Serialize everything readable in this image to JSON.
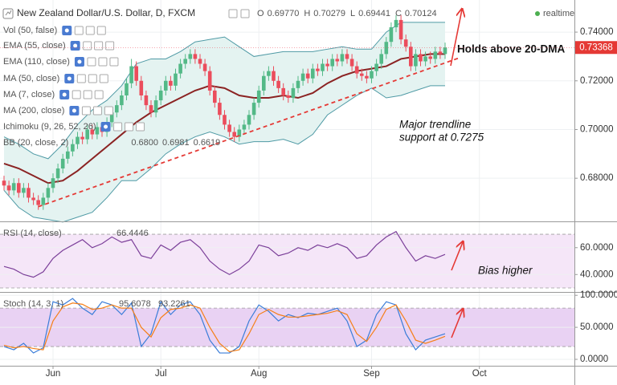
{
  "chart_data": [
    {
      "type": "candlestick",
      "title": "New Zealand Dollar/U.S. Dollar, D, FXCM",
      "ohlc_legend": [
        {
          "label": "O",
          "value": "0.69770"
        },
        {
          "label": "H",
          "value": "0.70279"
        },
        {
          "label": "L",
          "value": "0.69441"
        },
        {
          "label": "C",
          "value": "0.70124"
        }
      ],
      "status": "realtime",
      "indicators": [
        "Vol (50, false)",
        "EMA (55, close)",
        "EMA (110, close)",
        "MA (50, close)",
        "MA (7, close)",
        "MA (200, close)",
        "Ichimoku (9, 26, 52, 26)"
      ],
      "bb_title": "BB (20, close, 2)",
      "bb_values": [
        "0.6800",
        "0.6981",
        "0.6619"
      ],
      "up_color": "#53b987",
      "down_color": "#eb4d5c",
      "open": [
        0.679,
        0.677,
        0.675,
        0.678,
        0.674,
        0.676,
        0.672,
        0.671,
        0.669,
        0.672,
        0.676,
        0.68,
        0.684,
        0.688,
        0.691,
        0.694,
        0.697,
        0.696,
        0.7,
        0.698,
        0.701,
        0.699,
        0.703,
        0.707,
        0.71,
        0.714,
        0.719,
        0.726,
        0.72,
        0.714,
        0.71,
        0.707,
        0.712,
        0.716,
        0.72,
        0.718,
        0.723,
        0.727,
        0.729,
        0.731,
        0.729,
        0.727,
        0.724,
        0.716,
        0.711,
        0.706,
        0.702,
        0.699,
        0.697,
        0.7,
        0.702,
        0.706,
        0.711,
        0.716,
        0.722,
        0.724,
        0.72,
        0.717,
        0.714,
        0.713,
        0.717,
        0.72,
        0.723,
        0.721,
        0.725,
        0.724,
        0.727,
        0.726,
        0.729,
        0.728,
        0.731,
        0.729,
        0.726,
        0.723,
        0.722,
        0.721,
        0.724,
        0.727,
        0.731,
        0.736,
        0.742,
        0.745,
        0.737,
        0.734,
        0.726,
        0.731,
        0.728,
        0.73,
        0.729,
        0.732,
        0.731
      ],
      "high": [
        0.681,
        0.679,
        0.68,
        0.68,
        0.678,
        0.678,
        0.674,
        0.673,
        0.674,
        0.678,
        0.682,
        0.686,
        0.69,
        0.693,
        0.696,
        0.699,
        0.699,
        0.702,
        0.702,
        0.703,
        0.703,
        0.705,
        0.709,
        0.712,
        0.716,
        0.721,
        0.729,
        0.728,
        0.722,
        0.716,
        0.712,
        0.714,
        0.718,
        0.722,
        0.722,
        0.725,
        0.729,
        0.731,
        0.733,
        0.733,
        0.731,
        0.729,
        0.726,
        0.718,
        0.713,
        0.708,
        0.704,
        0.701,
        0.702,
        0.704,
        0.708,
        0.713,
        0.718,
        0.724,
        0.726,
        0.726,
        0.722,
        0.719,
        0.716,
        0.719,
        0.722,
        0.725,
        0.725,
        0.727,
        0.727,
        0.729,
        0.729,
        0.731,
        0.731,
        0.733,
        0.733,
        0.731,
        0.728,
        0.725,
        0.724,
        0.726,
        0.729,
        0.733,
        0.738,
        0.744,
        0.747,
        0.747,
        0.739,
        0.736,
        0.733,
        0.733,
        0.732,
        0.732,
        0.734,
        0.734,
        0.7357
      ],
      "low": [
        0.675,
        0.673,
        0.673,
        0.672,
        0.672,
        0.67,
        0.669,
        0.667,
        0.667,
        0.67,
        0.674,
        0.678,
        0.682,
        0.686,
        0.689,
        0.692,
        0.694,
        0.694,
        0.696,
        0.696,
        0.697,
        0.697,
        0.701,
        0.705,
        0.708,
        0.712,
        0.717,
        0.718,
        0.712,
        0.708,
        0.705,
        0.705,
        0.71,
        0.714,
        0.716,
        0.716,
        0.721,
        0.725,
        0.727,
        0.727,
        0.725,
        0.722,
        0.714,
        0.709,
        0.704,
        0.7,
        0.697,
        0.695,
        0.695,
        0.698,
        0.7,
        0.704,
        0.709,
        0.714,
        0.72,
        0.718,
        0.715,
        0.712,
        0.711,
        0.711,
        0.715,
        0.718,
        0.719,
        0.719,
        0.722,
        0.722,
        0.724,
        0.724,
        0.726,
        0.726,
        0.727,
        0.724,
        0.721,
        0.72,
        0.719,
        0.719,
        0.722,
        0.725,
        0.729,
        0.734,
        0.74,
        0.735,
        0.732,
        0.724,
        0.724,
        0.726,
        0.726,
        0.727,
        0.727,
        0.729,
        0.729
      ],
      "close": [
        0.677,
        0.675,
        0.678,
        0.674,
        0.676,
        0.672,
        0.671,
        0.669,
        0.672,
        0.676,
        0.68,
        0.684,
        0.688,
        0.691,
        0.694,
        0.697,
        0.696,
        0.7,
        0.698,
        0.701,
        0.699,
        0.703,
        0.707,
        0.71,
        0.714,
        0.719,
        0.726,
        0.72,
        0.714,
        0.71,
        0.707,
        0.712,
        0.716,
        0.72,
        0.718,
        0.723,
        0.727,
        0.729,
        0.731,
        0.729,
        0.727,
        0.724,
        0.716,
        0.711,
        0.706,
        0.702,
        0.699,
        0.697,
        0.7,
        0.702,
        0.706,
        0.711,
        0.716,
        0.722,
        0.724,
        0.72,
        0.717,
        0.714,
        0.713,
        0.717,
        0.72,
        0.723,
        0.721,
        0.725,
        0.724,
        0.727,
        0.726,
        0.729,
        0.728,
        0.731,
        0.729,
        0.726,
        0.723,
        0.722,
        0.721,
        0.724,
        0.727,
        0.731,
        0.736,
        0.742,
        0.745,
        0.737,
        0.734,
        0.726,
        0.731,
        0.728,
        0.73,
        0.729,
        0.732,
        0.731,
        0.73368
      ],
      "bands": {
        "x": [
          0,
          3,
          6,
          9,
          12,
          15,
          18,
          21,
          24,
          27,
          30,
          33,
          36,
          39,
          42,
          45,
          48,
          51,
          54,
          57,
          60,
          63,
          66,
          69,
          72,
          75,
          78,
          81,
          84,
          87,
          90
        ],
        "upper": [
          0.697,
          0.694,
          0.69,
          0.688,
          0.694,
          0.702,
          0.708,
          0.712,
          0.718,
          0.727,
          0.729,
          0.729,
          0.732,
          0.736,
          0.737,
          0.738,
          0.734,
          0.73,
          0.731,
          0.732,
          0.732,
          0.732,
          0.733,
          0.734,
          0.733,
          0.733,
          0.74,
          0.744,
          0.744,
          0.744,
          0.744
        ],
        "middle": [
          0.686,
          0.684,
          0.681,
          0.678,
          0.679,
          0.683,
          0.688,
          0.693,
          0.698,
          0.703,
          0.707,
          0.71,
          0.713,
          0.716,
          0.718,
          0.717,
          0.714,
          0.713,
          0.713,
          0.714,
          0.713,
          0.715,
          0.719,
          0.722,
          0.724,
          0.725,
          0.726,
          0.729,
          0.73,
          0.731,
          0.731
        ],
        "lower": [
          0.675,
          0.668,
          0.664,
          0.663,
          0.662,
          0.664,
          0.666,
          0.672,
          0.679,
          0.679,
          0.684,
          0.69,
          0.694,
          0.697,
          0.699,
          0.697,
          0.694,
          0.695,
          0.695,
          0.696,
          0.694,
          0.698,
          0.706,
          0.71,
          0.714,
          0.717,
          0.713,
          0.714,
          0.716,
          0.718,
          0.718
        ],
        "color": "#4f9aa5",
        "middle_color": "#8b2323",
        "fill": "#e4f3f1"
      },
      "trendline": {
        "x": [
          7,
          93
        ],
        "values": [
          0.6683,
          0.7295
        ],
        "color": "#e53935"
      },
      "last_price": {
        "value": 0.73368,
        "label": "0.73368"
      },
      "ylim": [
        0.6626,
        0.7532
      ],
      "yticks": [
        {
          "value": 0.68,
          "label": "0.68000"
        },
        {
          "value": 0.7,
          "label": "0.70000"
        },
        {
          "value": 0.72,
          "label": "0.72000"
        },
        {
          "value": 0.74,
          "label": "0.74000"
        }
      ],
      "xticks": [
        {
          "value": 10,
          "label": "Jun"
        },
        {
          "value": 32,
          "label": "Jul"
        },
        {
          "value": 52,
          "label": "Aug"
        },
        {
          "value": 75,
          "label": "Sep"
        },
        {
          "value": 97,
          "label": "Oct"
        }
      ],
      "grid": true,
      "annotations": [
        "Holds above 20-DMA",
        "Major trendline",
        "support at 0.7275"
      ]
    },
    {
      "type": "line",
      "title": "RSI (14, close)",
      "x": [
        0,
        2,
        4,
        6,
        8,
        10,
        12,
        14,
        16,
        18,
        20,
        22,
        24,
        26,
        28,
        30,
        32,
        34,
        36,
        38,
        40,
        42,
        44,
        46,
        48,
        50,
        52,
        54,
        56,
        58,
        60,
        62,
        64,
        66,
        68,
        70,
        72,
        74,
        76,
        78,
        80,
        82,
        84,
        86,
        88,
        90
      ],
      "series": [
        {
          "color": "#7b3f99",
          "last": 66.4446,
          "values": [
            46,
            44,
            40,
            38,
            42,
            52,
            58,
            62,
            66,
            60,
            63,
            68,
            64,
            66,
            54,
            52,
            62,
            58,
            64,
            66,
            60,
            50,
            44,
            40,
            44,
            50,
            62,
            60,
            54,
            56,
            60,
            58,
            62,
            60,
            63,
            60,
            52,
            54,
            62,
            68,
            72,
            60,
            50,
            54,
            52,
            55
          ]
        }
      ],
      "ylim": [
        27,
        79
      ],
      "yticks": [
        {
          "value": 40,
          "label": "40.0000"
        },
        {
          "value": 60,
          "label": "60.0000"
        }
      ],
      "bands": [
        30,
        70
      ],
      "band_color": "#f5e6f8",
      "grid": true,
      "annotations": [
        "Bias higher"
      ]
    },
    {
      "type": "line",
      "title": "Stoch (14, 3, 1)",
      "x": [
        0,
        2,
        4,
        6,
        8,
        10,
        12,
        14,
        16,
        18,
        20,
        22,
        24,
        26,
        28,
        30,
        32,
        34,
        36,
        38,
        40,
        42,
        44,
        46,
        48,
        50,
        52,
        54,
        56,
        58,
        60,
        62,
        64,
        66,
        68,
        70,
        72,
        74,
        76,
        78,
        80,
        82,
        84,
        86,
        88,
        90
      ],
      "series": [
        {
          "color": "#3b7dd8",
          "last": 95.6078,
          "values": [
            20,
            15,
            25,
            10,
            18,
            90,
            85,
            95,
            80,
            70,
            90,
            85,
            70,
            88,
            20,
            40,
            90,
            70,
            85,
            90,
            70,
            30,
            10,
            10,
            20,
            60,
            85,
            75,
            60,
            70,
            65,
            72,
            70,
            75,
            80,
            60,
            20,
            30,
            70,
            90,
            85,
            40,
            15,
            30,
            35,
            40
          ]
        },
        {
          "color": "#f57f17",
          "last": 93.2261,
          "values": [
            22,
            18,
            20,
            17,
            15,
            60,
            82,
            88,
            86,
            78,
            80,
            85,
            80,
            80,
            50,
            35,
            65,
            78,
            80,
            85,
            80,
            50,
            25,
            12,
            15,
            40,
            70,
            78,
            70,
            66,
            66,
            68,
            70,
            72,
            76,
            70,
            40,
            28,
            50,
            78,
            85,
            60,
            30,
            25,
            30,
            36
          ]
        }
      ],
      "ylim": [
        -10,
        104
      ],
      "yticks": [
        {
          "value": 0,
          "label": "0.0000"
        },
        {
          "value": 50,
          "label": "50.0000"
        },
        {
          "value": 100,
          "label": "100.0000"
        }
      ],
      "bands": [
        20,
        80
      ],
      "band_color": "#e9d2f3",
      "grid": true
    }
  ]
}
